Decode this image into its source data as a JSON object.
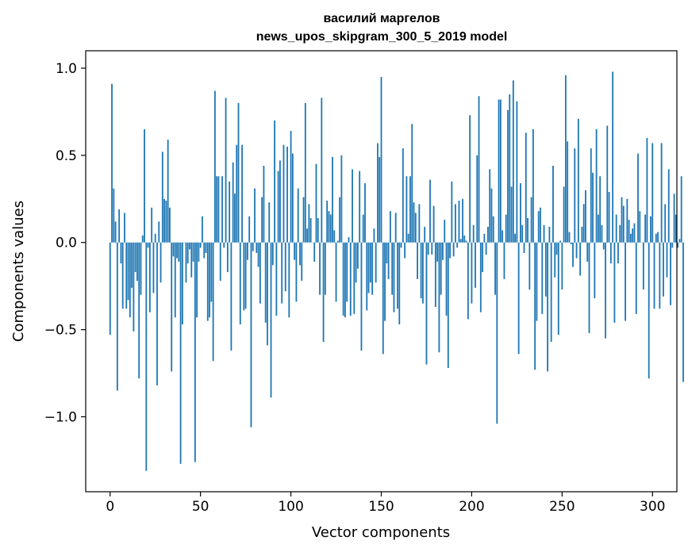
{
  "chart_data": {
    "type": "bar",
    "title_line1": "василий маргелов",
    "title_line2": "news_upos_skipgram_300_5_2019 model",
    "xlabel": "Vector components",
    "ylabel": "Components values",
    "xlim": [
      -13.5,
      313.5
    ],
    "ylim": [
      -1.43,
      1.1
    ],
    "xticks": [
      0,
      50,
      100,
      150,
      200,
      250,
      300
    ],
    "xtick_labels": [
      "0",
      "50",
      "100",
      "150",
      "200",
      "250",
      "300"
    ],
    "yticks": [
      -1.0,
      -0.5,
      0.0,
      0.5,
      1.0
    ],
    "ytick_labels": [
      "−1.0",
      "−0.5",
      "0.0",
      "0.5",
      "1.0"
    ],
    "bar_color": "#1f77b4",
    "values": [
      -0.53,
      0.91,
      0.31,
      0.12,
      -0.85,
      0.19,
      -0.12,
      -0.38,
      0.17,
      -0.38,
      -0.33,
      -0.43,
      -0.26,
      -0.51,
      -0.17,
      -0.22,
      -0.78,
      -0.3,
      0.04,
      0.65,
      -1.31,
      -0.03,
      -0.4,
      0.2,
      -0.29,
      0.05,
      -0.82,
      0.12,
      -0.23,
      0.52,
      0.25,
      0.24,
      0.59,
      0.2,
      -0.74,
      -0.08,
      -0.43,
      -0.09,
      -0.11,
      -1.27,
      -0.47,
      0.0,
      -0.23,
      -0.12,
      -0.04,
      -0.2,
      -0.11,
      -1.26,
      -0.43,
      -0.11,
      -0.03,
      0.15,
      -0.09,
      -0.06,
      -0.45,
      -0.43,
      -0.34,
      -0.68,
      0.87,
      0.38,
      0.38,
      -0.22,
      0.38,
      -0.03,
      0.83,
      -0.17,
      0.35,
      -0.62,
      0.46,
      0.28,
      0.56,
      0.8,
      -0.47,
      0.56,
      -0.39,
      -0.38,
      -0.1,
      0.15,
      -1.06,
      -0.05,
      0.31,
      -0.06,
      -0.14,
      -0.35,
      0.26,
      0.44,
      -0.46,
      -0.59,
      0.23,
      -0.89,
      -0.13,
      0.7,
      -0.42,
      0.41,
      0.47,
      -0.35,
      0.56,
      -0.28,
      0.55,
      -0.43,
      0.64,
      0.51,
      -0.1,
      -0.34,
      0.31,
      -0.13,
      -0.22,
      0.26,
      0.8,
      0.08,
      0.22,
      0.14,
      0.0,
      -0.11,
      0.45,
      0.14,
      -0.3,
      0.83,
      -0.57,
      -0.3,
      0.24,
      0.18,
      0.16,
      0.49,
      0.07,
      -0.34,
      0.01,
      0.26,
      0.5,
      -0.42,
      -0.43,
      -0.34,
      0.03,
      -0.42,
      0.42,
      -0.41,
      -0.23,
      -0.15,
      0.41,
      -0.62,
      0.16,
      0.34,
      -0.39,
      -0.29,
      -0.23,
      -0.3,
      0.08,
      -0.23,
      0.57,
      0.49,
      0.95,
      -0.64,
      -0.45,
      -0.12,
      -0.21,
      0.18,
      -0.3,
      -0.4,
      0.17,
      -0.38,
      -0.47,
      -0.03,
      0.54,
      -0.09,
      0.38,
      0.05,
      0.38,
      0.68,
      0.23,
      0.17,
      -0.21,
      0.22,
      -0.32,
      -0.35,
      0.09,
      -0.7,
      -0.07,
      0.36,
      -0.07,
      0.21,
      -0.37,
      -0.11,
      -0.63,
      -0.3,
      -0.1,
      0.13,
      -0.42,
      -0.72,
      -0.09,
      0.35,
      -0.08,
      0.22,
      -0.03,
      0.24,
      0.02,
      0.25,
      0.04,
      0.01,
      -0.44,
      0.73,
      -0.35,
      0.1,
      -0.26,
      0.5,
      0.84,
      -0.4,
      -0.17,
      0.05,
      -0.07,
      0.09,
      0.42,
      0.31,
      0.15,
      -0.3,
      -1.04,
      0.82,
      0.82,
      0.07,
      -0.21,
      0.16,
      0.76,
      0.85,
      0.32,
      0.93,
      0.05,
      0.81,
      -0.64,
      0.34,
      0.1,
      -0.06,
      0.63,
      0.14,
      -0.27,
      0.26,
      0.65,
      -0.73,
      -0.45,
      0.18,
      0.2,
      -0.41,
      0.1,
      -0.31,
      -0.74,
      0.09,
      -0.57,
      0.44,
      -0.2,
      -0.07,
      -0.53,
      0.01,
      -0.27,
      0.32,
      0.96,
      0.58,
      0.06,
      -0.01,
      -0.14,
      0.54,
      -0.09,
      0.71,
      -0.19,
      0.09,
      0.22,
      0.3,
      -0.11,
      -0.52,
      0.54,
      0.4,
      -0.32,
      0.65,
      0.16,
      0.38,
      0.1,
      -0.04,
      -0.55,
      0.67,
      0.29,
      -0.12,
      0.98,
      -0.46,
      0.16,
      -0.12,
      0.1,
      0.26,
      0.21,
      -0.45,
      0.25,
      0.13,
      0.05,
      0.08,
      0.11,
      -0.41,
      0.51,
      0.18,
      0.0,
      -0.27,
      0.16,
      0.6,
      -0.78,
      0.15,
      0.57,
      -0.38,
      0.05,
      0.06,
      -0.38,
      0.57,
      -0.31,
      0.22,
      -0.2,
      0.42,
      -0.36,
      -0.03,
      0.28,
      0.16,
      -0.03,
      0.02,
      0.38,
      -0.8
    ]
  }
}
